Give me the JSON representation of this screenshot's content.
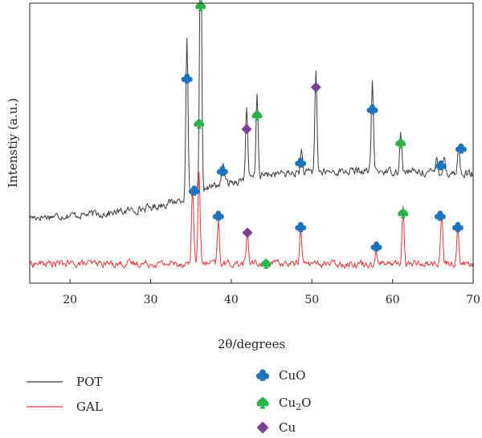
{
  "chart_data": {
    "type": "line",
    "title": "",
    "xlabel": "2θ/degrees",
    "ylabel": "Intenstiy (a.u.)",
    "xlim": [
      15,
      70
    ],
    "ylim": [
      0,
      100
    ],
    "xticks": [
      "20",
      "30",
      "40",
      "50",
      "60",
      "70"
    ],
    "grid": false,
    "legend_position": "bottom",
    "series": [
      {
        "name": "POT",
        "color": "#3a3a3a",
        "baseline": [
          [
            15,
            23.5
          ],
          [
            25,
            25
          ],
          [
            30,
            27
          ],
          [
            34,
            30
          ],
          [
            38,
            35
          ],
          [
            45,
            39
          ],
          [
            55,
            40
          ],
          [
            60,
            40
          ],
          [
            70,
            39
          ]
        ],
        "noise": 2.2,
        "peaks": [
          [
            34.5,
            57
          ],
          [
            36.2,
            98
          ],
          [
            39.0,
            8
          ],
          [
            41.9,
            26
          ],
          [
            43.2,
            30
          ],
          [
            48.7,
            8
          ],
          [
            50.5,
            37
          ],
          [
            57.5,
            33
          ],
          [
            61.0,
            14
          ],
          [
            65.5,
            6
          ],
          [
            66.4,
            6
          ],
          [
            68.2,
            10
          ]
        ]
      },
      {
        "name": "GAL",
        "color": "#ee3338",
        "baseline": [
          [
            15,
            7
          ],
          [
            30,
            7
          ],
          [
            40,
            7
          ],
          [
            55,
            7
          ],
          [
            70,
            7
          ]
        ],
        "noise": 2.0,
        "peaks": [
          [
            35.2,
            28
          ],
          [
            36.0,
            34
          ],
          [
            38.4,
            15
          ],
          [
            42.0,
            12
          ],
          [
            48.6,
            14
          ],
          [
            58.0,
            5
          ],
          [
            61.3,
            20
          ],
          [
            66.1,
            18
          ],
          [
            68.1,
            13
          ]
        ]
      }
    ],
    "markers": [
      {
        "phase": "Cu2O",
        "x": 36.2,
        "y": 99
      },
      {
        "phase": "CuO",
        "x": 34.5,
        "y": 73
      },
      {
        "phase": "Cu2O",
        "x": 36.0,
        "y": 57
      },
      {
        "phase": "Cu",
        "x": 41.9,
        "y": 55
      },
      {
        "phase": "Cu2O",
        "x": 43.2,
        "y": 60
      },
      {
        "phase": "Cu",
        "x": 50.5,
        "y": 70
      },
      {
        "phase": "CuO",
        "x": 57.5,
        "y": 62
      },
      {
        "phase": "Cu2O",
        "x": 61.0,
        "y": 50
      },
      {
        "phase": "CuO",
        "x": 38.9,
        "y": 40
      },
      {
        "phase": "CuO",
        "x": 48.6,
        "y": 43
      },
      {
        "phase": "CuO",
        "x": 66.0,
        "y": 42
      },
      {
        "phase": "CuO",
        "x": 68.5,
        "y": 48
      },
      {
        "phase": "CuO",
        "x": 35.4,
        "y": 33
      },
      {
        "phase": "CuO",
        "x": 38.4,
        "y": 24
      },
      {
        "phase": "Cu",
        "x": 42.0,
        "y": 18
      },
      {
        "phase": "Cu2O",
        "x": 44.3,
        "y": 7
      },
      {
        "phase": "CuO",
        "x": 48.6,
        "y": 20
      },
      {
        "phase": "CuO",
        "x": 58.0,
        "y": 13
      },
      {
        "phase": "Cu2O",
        "x": 61.3,
        "y": 25
      },
      {
        "phase": "CuO",
        "x": 65.9,
        "y": 24
      },
      {
        "phase": "CuO",
        "x": 68.1,
        "y": 20
      }
    ],
    "legend": {
      "lines": [
        {
          "label": "POT",
          "color": "#3a3a3a"
        },
        {
          "label": "GAL",
          "color": "#ee3338"
        }
      ],
      "phases": [
        {
          "phase": "CuO",
          "label": "CuO",
          "shape": "club",
          "color": "#1e73be"
        },
        {
          "phase": "Cu2O",
          "label_main": "Cu",
          "label_sub": "2",
          "label_tail": "O",
          "shape": "spade",
          "color": "#2bb34a"
        },
        {
          "phase": "Cu",
          "label": "Cu",
          "shape": "diamond",
          "color": "#7b3f98"
        }
      ]
    }
  }
}
